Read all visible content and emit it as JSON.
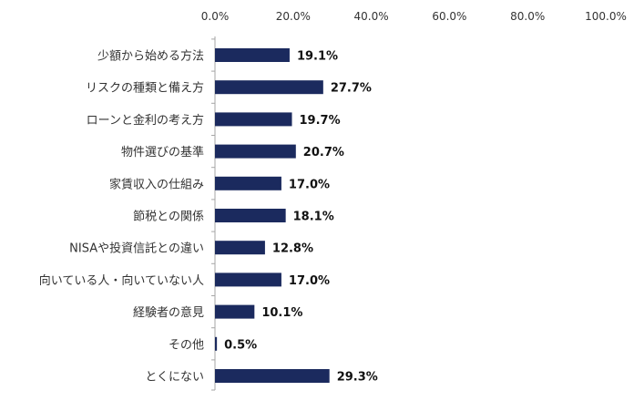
{
  "chart_data": {
    "type": "bar",
    "orientation": "horizontal",
    "categories": [
      "少額から始める方法",
      "リスクの種類と備え方",
      "ローンと金利の考え方",
      "物件選びの基準",
      "家賃収入の仕組み",
      "節税との関係",
      "NISAや投資信託との違い",
      "向いている人・向いていない人",
      "経験者の意見",
      "その他",
      "とくにない"
    ],
    "values": [
      19.1,
      27.7,
      19.7,
      20.7,
      17.0,
      18.1,
      12.8,
      17.0,
      10.1,
      0.5,
      29.3
    ],
    "value_labels": [
      "19.1%",
      "27.7%",
      "19.7%",
      "20.7%",
      "17.0%",
      "18.1%",
      "12.8%",
      "17.0%",
      "10.1%",
      "0.5%",
      "29.3%"
    ],
    "x_ticks": [
      0,
      20,
      40,
      60,
      80,
      100
    ],
    "x_tick_labels": [
      "0.0%",
      "20.0%",
      "40.0%",
      "60.0%",
      "80.0%",
      "100.0%"
    ],
    "xlim": [
      0,
      100
    ],
    "x_axis_position": "top",
    "grid": false,
    "title": "",
    "xlabel": "",
    "ylabel": "",
    "bar_color": "#1b2a5e",
    "axis_color": "#a6a6a6"
  }
}
